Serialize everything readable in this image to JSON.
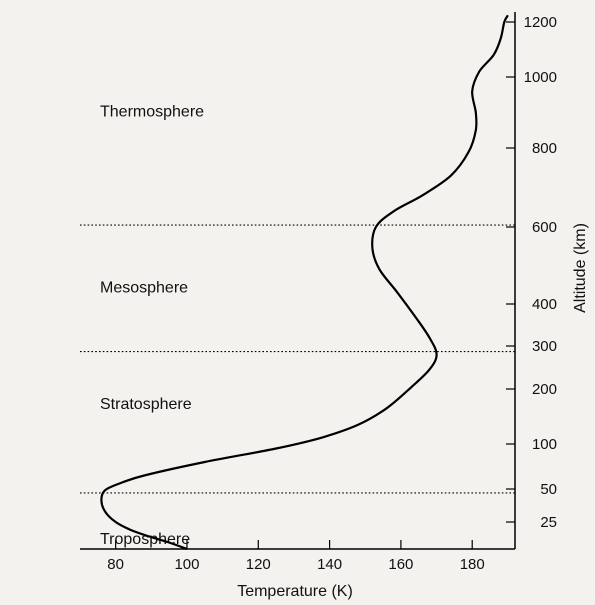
{
  "chart_data": {
    "type": "line",
    "title": "",
    "xlabel": "Temperature (K)",
    "ylabel": "Altitude (km)",
    "xlim": [
      70,
      192
    ],
    "ylim": [
      0,
      1230
    ],
    "x_ticks": [
      80,
      100,
      120,
      140,
      160,
      180
    ],
    "y_ticks": [
      25,
      50,
      100,
      200,
      300,
      400,
      600,
      800,
      1000,
      1200
    ],
    "y_axis_side": "right",
    "grid": false,
    "series": [
      {
        "name": "",
        "color": "#000000",
        "points": [
          [
            100,
            0
          ],
          [
            95,
            6
          ],
          [
            89,
            12
          ],
          [
            84,
            18
          ],
          [
            80,
            25
          ],
          [
            77,
            33
          ],
          [
            76,
            42
          ],
          [
            77,
            49
          ],
          [
            81,
            56
          ],
          [
            88,
            65
          ],
          [
            105,
            80
          ],
          [
            125,
            95
          ],
          [
            138,
            112
          ],
          [
            148,
            135
          ],
          [
            156,
            165
          ],
          [
            163,
            205
          ],
          [
            168,
            245
          ],
          [
            170,
            280
          ],
          [
            168,
            320
          ],
          [
            164,
            370
          ],
          [
            159,
            430
          ],
          [
            154,
            490
          ],
          [
            152,
            545
          ],
          [
            153,
            600
          ],
          [
            158,
            640
          ],
          [
            166,
            680
          ],
          [
            174,
            730
          ],
          [
            179,
            790
          ],
          [
            181,
            850
          ],
          [
            181,
            900
          ],
          [
            180,
            960
          ],
          [
            182,
            1020
          ],
          [
            186,
            1080
          ],
          [
            188,
            1140
          ],
          [
            189,
            1200
          ],
          [
            190,
            1220
          ]
        ]
      }
    ],
    "layer_boundaries": [
      47,
      287,
      605
    ],
    "layers": [
      {
        "name": "Thermosphere",
        "altitude": 905
      },
      {
        "name": "Mesosphere",
        "altitude": 445
      },
      {
        "name": "Stratosphere",
        "altitude": 175
      },
      {
        "name": "Troposphere",
        "altitude": 10
      }
    ]
  }
}
